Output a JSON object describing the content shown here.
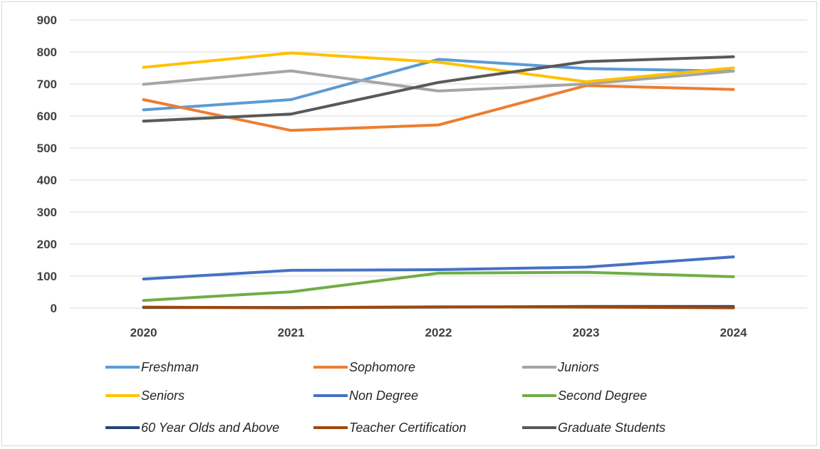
{
  "chart_data": {
    "type": "line",
    "title": "",
    "xlabel": "",
    "ylabel": "",
    "x": [
      "2020",
      "2021",
      "2022",
      "2023",
      "2024"
    ],
    "ylim": [
      0,
      900
    ],
    "yticks": [
      "0",
      "100",
      "200",
      "300",
      "400",
      "500",
      "600",
      "700",
      "800",
      "900"
    ],
    "grid": true,
    "legend_position": "bottom",
    "series": [
      {
        "name": "Freshman",
        "color": "#5b9bd5",
        "values": [
          619,
          651,
          777,
          748,
          740
        ]
      },
      {
        "name": "Sophomore",
        "color": "#ed7d31",
        "values": [
          651,
          555,
          572,
          695,
          683
        ]
      },
      {
        "name": "Juniors",
        "color": "#a5a5a5",
        "values": [
          699,
          741,
          678,
          700,
          740
        ]
      },
      {
        "name": "Seniors",
        "color": "#ffc000",
        "values": [
          752,
          797,
          768,
          707,
          750
        ]
      },
      {
        "name": "Non Degree",
        "color": "#4472c4",
        "values": [
          91,
          118,
          120,
          128,
          160
        ]
      },
      {
        "name": "Second Degree",
        "color": "#70ad47",
        "values": [
          24,
          51,
          109,
          112,
          98
        ]
      },
      {
        "name": "60  Year Olds and Above",
        "color": "#264478",
        "values": [
          2,
          2,
          3,
          5,
          5
        ]
      },
      {
        "name": "Teacher Certification",
        "color": "#9e480e",
        "values": [
          3,
          1,
          4,
          3,
          1
        ]
      },
      {
        "name": "Graduate Students",
        "color": "#595959",
        "values": [
          584,
          606,
          705,
          770,
          785
        ]
      }
    ]
  }
}
